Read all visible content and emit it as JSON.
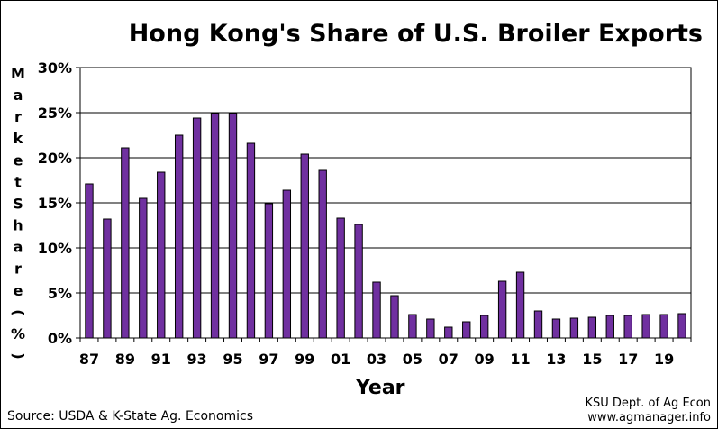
{
  "chart_data": {
    "type": "bar",
    "title": "Hong Kong's Share of U.S. Broiler Exports",
    "xlabel": "Year",
    "ylabel": "Market Share (%)",
    "ylim": [
      0,
      30
    ],
    "ytick_labels": [
      "0%",
      "5%",
      "10%",
      "15%",
      "20%",
      "25%",
      "30%"
    ],
    "x_tick_labels": [
      "87",
      "89",
      "91",
      "93",
      "95",
      "97",
      "99",
      "01",
      "03",
      "05",
      "07",
      "09",
      "11",
      "13",
      "15",
      "17",
      "19"
    ],
    "categories": [
      "87",
      "88",
      "89",
      "90",
      "91",
      "92",
      "93",
      "94",
      "95",
      "96",
      "97",
      "98",
      "99",
      "00",
      "01",
      "02",
      "03",
      "04",
      "05",
      "06",
      "07",
      "08",
      "09",
      "10",
      "11",
      "12",
      "13",
      "14",
      "15",
      "16",
      "17",
      "18",
      "19",
      "20"
    ],
    "values": [
      17.1,
      13.2,
      21.1,
      15.5,
      18.4,
      22.5,
      24.4,
      24.9,
      24.9,
      21.6,
      14.9,
      16.4,
      20.4,
      18.6,
      13.3,
      12.6,
      6.2,
      4.7,
      2.6,
      2.1,
      1.2,
      1.8,
      2.5,
      6.3,
      7.3,
      3.0,
      2.1,
      2.2,
      2.3,
      2.5,
      2.5,
      2.6,
      2.6,
      2.7
    ],
    "grid": true,
    "bar_color": "#7030A0",
    "bar_outline": "#000000"
  },
  "footer": {
    "source": "Source:  USDA & K-State Ag. Economics",
    "credit_line1": "KSU Dept. of Ag Econ",
    "credit_line2": "www.agmanager.info"
  }
}
